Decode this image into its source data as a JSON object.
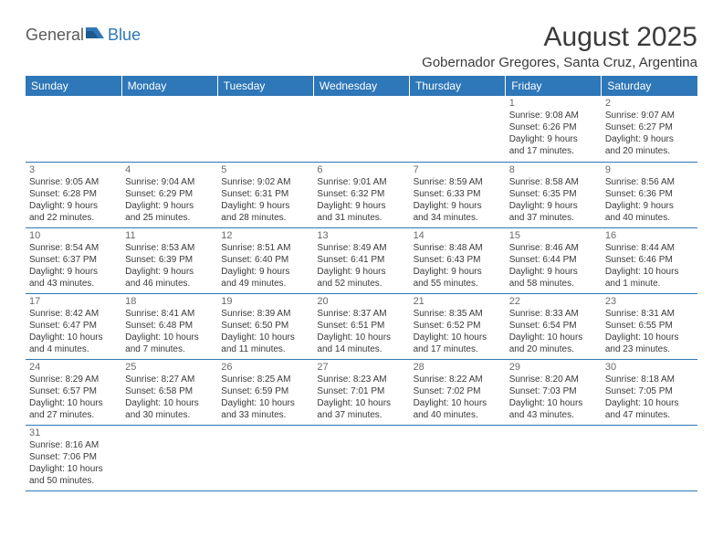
{
  "logo": {
    "part1": "General",
    "part2": "Blue"
  },
  "title": "August 2025",
  "location": "Gobernador Gregores, Santa Cruz, Argentina",
  "header_color": "#2e77b8",
  "days_of_week": [
    "Sunday",
    "Monday",
    "Tuesday",
    "Wednesday",
    "Thursday",
    "Friday",
    "Saturday"
  ],
  "weeks": [
    [
      null,
      null,
      null,
      null,
      null,
      {
        "n": "1",
        "sr": "Sunrise: 9:08 AM",
        "ss": "Sunset: 6:26 PM",
        "d1": "Daylight: 9 hours",
        "d2": "and 17 minutes."
      },
      {
        "n": "2",
        "sr": "Sunrise: 9:07 AM",
        "ss": "Sunset: 6:27 PM",
        "d1": "Daylight: 9 hours",
        "d2": "and 20 minutes."
      }
    ],
    [
      {
        "n": "3",
        "sr": "Sunrise: 9:05 AM",
        "ss": "Sunset: 6:28 PM",
        "d1": "Daylight: 9 hours",
        "d2": "and 22 minutes."
      },
      {
        "n": "4",
        "sr": "Sunrise: 9:04 AM",
        "ss": "Sunset: 6:29 PM",
        "d1": "Daylight: 9 hours",
        "d2": "and 25 minutes."
      },
      {
        "n": "5",
        "sr": "Sunrise: 9:02 AM",
        "ss": "Sunset: 6:31 PM",
        "d1": "Daylight: 9 hours",
        "d2": "and 28 minutes."
      },
      {
        "n": "6",
        "sr": "Sunrise: 9:01 AM",
        "ss": "Sunset: 6:32 PM",
        "d1": "Daylight: 9 hours",
        "d2": "and 31 minutes."
      },
      {
        "n": "7",
        "sr": "Sunrise: 8:59 AM",
        "ss": "Sunset: 6:33 PM",
        "d1": "Daylight: 9 hours",
        "d2": "and 34 minutes."
      },
      {
        "n": "8",
        "sr": "Sunrise: 8:58 AM",
        "ss": "Sunset: 6:35 PM",
        "d1": "Daylight: 9 hours",
        "d2": "and 37 minutes."
      },
      {
        "n": "9",
        "sr": "Sunrise: 8:56 AM",
        "ss": "Sunset: 6:36 PM",
        "d1": "Daylight: 9 hours",
        "d2": "and 40 minutes."
      }
    ],
    [
      {
        "n": "10",
        "sr": "Sunrise: 8:54 AM",
        "ss": "Sunset: 6:37 PM",
        "d1": "Daylight: 9 hours",
        "d2": "and 43 minutes."
      },
      {
        "n": "11",
        "sr": "Sunrise: 8:53 AM",
        "ss": "Sunset: 6:39 PM",
        "d1": "Daylight: 9 hours",
        "d2": "and 46 minutes."
      },
      {
        "n": "12",
        "sr": "Sunrise: 8:51 AM",
        "ss": "Sunset: 6:40 PM",
        "d1": "Daylight: 9 hours",
        "d2": "and 49 minutes."
      },
      {
        "n": "13",
        "sr": "Sunrise: 8:49 AM",
        "ss": "Sunset: 6:41 PM",
        "d1": "Daylight: 9 hours",
        "d2": "and 52 minutes."
      },
      {
        "n": "14",
        "sr": "Sunrise: 8:48 AM",
        "ss": "Sunset: 6:43 PM",
        "d1": "Daylight: 9 hours",
        "d2": "and 55 minutes."
      },
      {
        "n": "15",
        "sr": "Sunrise: 8:46 AM",
        "ss": "Sunset: 6:44 PM",
        "d1": "Daylight: 9 hours",
        "d2": "and 58 minutes."
      },
      {
        "n": "16",
        "sr": "Sunrise: 8:44 AM",
        "ss": "Sunset: 6:46 PM",
        "d1": "Daylight: 10 hours",
        "d2": "and 1 minute."
      }
    ],
    [
      {
        "n": "17",
        "sr": "Sunrise: 8:42 AM",
        "ss": "Sunset: 6:47 PM",
        "d1": "Daylight: 10 hours",
        "d2": "and 4 minutes."
      },
      {
        "n": "18",
        "sr": "Sunrise: 8:41 AM",
        "ss": "Sunset: 6:48 PM",
        "d1": "Daylight: 10 hours",
        "d2": "and 7 minutes."
      },
      {
        "n": "19",
        "sr": "Sunrise: 8:39 AM",
        "ss": "Sunset: 6:50 PM",
        "d1": "Daylight: 10 hours",
        "d2": "and 11 minutes."
      },
      {
        "n": "20",
        "sr": "Sunrise: 8:37 AM",
        "ss": "Sunset: 6:51 PM",
        "d1": "Daylight: 10 hours",
        "d2": "and 14 minutes."
      },
      {
        "n": "21",
        "sr": "Sunrise: 8:35 AM",
        "ss": "Sunset: 6:52 PM",
        "d1": "Daylight: 10 hours",
        "d2": "and 17 minutes."
      },
      {
        "n": "22",
        "sr": "Sunrise: 8:33 AM",
        "ss": "Sunset: 6:54 PM",
        "d1": "Daylight: 10 hours",
        "d2": "and 20 minutes."
      },
      {
        "n": "23",
        "sr": "Sunrise: 8:31 AM",
        "ss": "Sunset: 6:55 PM",
        "d1": "Daylight: 10 hours",
        "d2": "and 23 minutes."
      }
    ],
    [
      {
        "n": "24",
        "sr": "Sunrise: 8:29 AM",
        "ss": "Sunset: 6:57 PM",
        "d1": "Daylight: 10 hours",
        "d2": "and 27 minutes."
      },
      {
        "n": "25",
        "sr": "Sunrise: 8:27 AM",
        "ss": "Sunset: 6:58 PM",
        "d1": "Daylight: 10 hours",
        "d2": "and 30 minutes."
      },
      {
        "n": "26",
        "sr": "Sunrise: 8:25 AM",
        "ss": "Sunset: 6:59 PM",
        "d1": "Daylight: 10 hours",
        "d2": "and 33 minutes."
      },
      {
        "n": "27",
        "sr": "Sunrise: 8:23 AM",
        "ss": "Sunset: 7:01 PM",
        "d1": "Daylight: 10 hours",
        "d2": "and 37 minutes."
      },
      {
        "n": "28",
        "sr": "Sunrise: 8:22 AM",
        "ss": "Sunset: 7:02 PM",
        "d1": "Daylight: 10 hours",
        "d2": "and 40 minutes."
      },
      {
        "n": "29",
        "sr": "Sunrise: 8:20 AM",
        "ss": "Sunset: 7:03 PM",
        "d1": "Daylight: 10 hours",
        "d2": "and 43 minutes."
      },
      {
        "n": "30",
        "sr": "Sunrise: 8:18 AM",
        "ss": "Sunset: 7:05 PM",
        "d1": "Daylight: 10 hours",
        "d2": "and 47 minutes."
      }
    ],
    [
      {
        "n": "31",
        "sr": "Sunrise: 8:16 AM",
        "ss": "Sunset: 7:06 PM",
        "d1": "Daylight: 10 hours",
        "d2": "and 50 minutes."
      },
      null,
      null,
      null,
      null,
      null,
      null
    ]
  ]
}
